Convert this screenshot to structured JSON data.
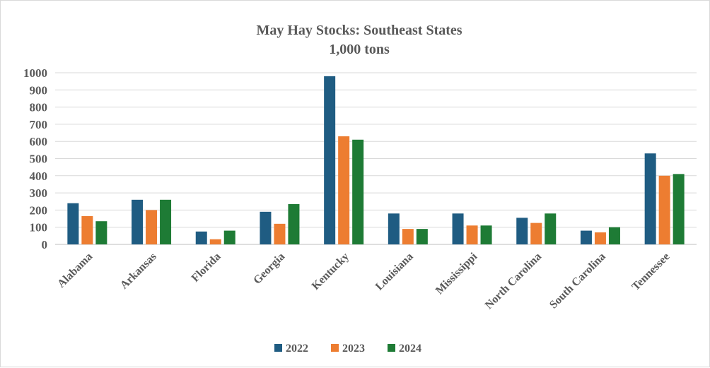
{
  "chart_data": {
    "type": "bar",
    "title": "May Hay Stocks: Southeast States",
    "subtitle": "1,000 tons",
    "xlabel": "",
    "ylabel": "",
    "ylim": [
      0,
      1000
    ],
    "yticks": [
      0,
      100,
      200,
      300,
      400,
      500,
      600,
      700,
      800,
      900,
      1000
    ],
    "grid": true,
    "legend_position": "bottom",
    "categories": [
      "Alabama",
      "Arkansas",
      "Florida",
      "Georgia",
      "Kentucky",
      "Louisiana",
      "Mississippi",
      "North Carolina",
      "South Carolina",
      "Tennessee"
    ],
    "series": [
      {
        "name": "2022",
        "color": "#1f5c82",
        "values": [
          240,
          260,
          75,
          190,
          980,
          180,
          180,
          155,
          80,
          530
        ]
      },
      {
        "name": "2023",
        "color": "#ed7d31",
        "values": [
          165,
          200,
          30,
          120,
          630,
          90,
          110,
          125,
          70,
          400
        ]
      },
      {
        "name": "2024",
        "color": "#1e7b35",
        "values": [
          135,
          260,
          80,
          235,
          610,
          90,
          110,
          180,
          100,
          410
        ]
      }
    ]
  }
}
